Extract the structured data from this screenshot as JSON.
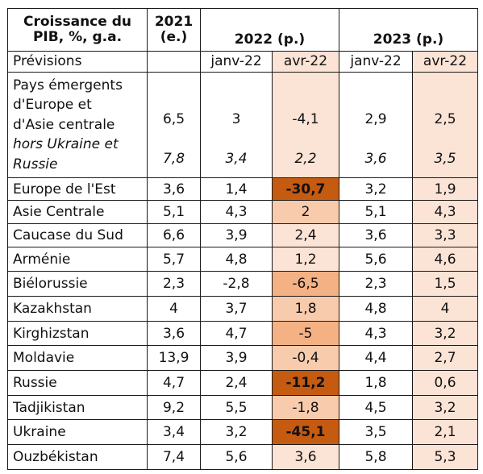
{
  "header": {
    "label_line1": "Croissance du",
    "label_line2": "PIB, %, g.a.",
    "y2021_line1": "2021",
    "y2021_line2": "(e.)",
    "y2022": "2022 (p.)",
    "y2023": "2023 (p.)"
  },
  "subheader": {
    "label": "Prévisions",
    "c1": "",
    "c2": "janv-22",
    "c3": "avr-22",
    "c4": "janv-22",
    "c5": "avr-22"
  },
  "group_main": {
    "label_lines": [
      "Pays émergents",
      "d'Europe et",
      "d'Asie centrale"
    ],
    "values": [
      "6,5",
      "3",
      "-4,1",
      "2,9",
      "2,5"
    ],
    "italic_label_lines": [
      "hors Ukraine et",
      "Russie"
    ],
    "italic_values": [
      "7,8",
      "3,4",
      "2,2",
      "3,6",
      "3,5"
    ]
  },
  "regions": [
    {
      "label": "Europe de l'Est",
      "values": [
        "3,6",
        "1,4",
        "-30,7",
        "3,2",
        "1,9"
      ]
    },
    {
      "label": "Asie Centrale",
      "values": [
        "5,1",
        "4,3",
        "2",
        "5,1",
        "4,3"
      ]
    },
    {
      "label": "Caucase du Sud",
      "values": [
        "6,6",
        "3,9",
        "2,4",
        "3,6",
        "3,3"
      ]
    }
  ],
  "countries": [
    {
      "label": "Arménie",
      "values": [
        "5,7",
        "4,8",
        "1,2",
        "5,6",
        "4,6"
      ]
    },
    {
      "label": "Biélorussie",
      "values": [
        "2,3",
        "-2,8",
        "-6,5",
        "2,3",
        "1,5"
      ]
    },
    {
      "label": "Kazakhstan",
      "values": [
        "4",
        "3,7",
        "1,8",
        "4,8",
        "4"
      ]
    },
    {
      "label": "Kirghizstan",
      "values": [
        "3,6",
        "4,7",
        "-5",
        "4,3",
        "3,2"
      ]
    },
    {
      "label": "Moldavie",
      "values": [
        "13,9",
        "3,9",
        "-0,4",
        "4,4",
        "2,7"
      ]
    },
    {
      "label": "Russie",
      "values": [
        "4,7",
        "2,4",
        "-11,2",
        "1,8",
        "0,6"
      ]
    },
    {
      "label": "Tadjikistan",
      "values": [
        "9,2",
        "5,5",
        "-1,8",
        "4,5",
        "3,2"
      ]
    },
    {
      "label": "Ukraine",
      "values": [
        "3,4",
        "3,2",
        "-45,1",
        "3,5",
        "2,1"
      ]
    },
    {
      "label": "Ouzbékistan",
      "values": [
        "7,4",
        "5,6",
        "3,6",
        "5,8",
        "5,3"
      ]
    }
  ],
  "colors": {
    "tint": "#fbe3d6",
    "highlight_dark": "#c55a11",
    "highlight_mid": "#f4b183",
    "highlight_light": "#f8cbad"
  }
}
